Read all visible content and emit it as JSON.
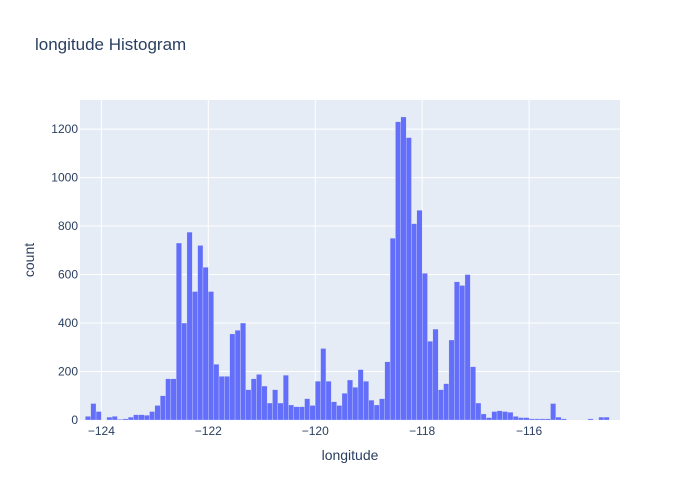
{
  "chart_data": {
    "type": "bar",
    "title": "longitude Histogram",
    "xlabel": "longitude",
    "ylabel": "count",
    "xlim": [
      -124.4,
      -114.3
    ],
    "ylim": [
      0,
      1320
    ],
    "xticks": [
      -124,
      -122,
      -120,
      -118,
      -116
    ],
    "yticks": [
      0,
      200,
      400,
      600,
      800,
      1000,
      1200
    ],
    "grid": true,
    "bar_color": "#636efa",
    "plot_bg": "#e5ecf6",
    "bin_start": -124.3,
    "bin_width": 0.1,
    "values": [
      15,
      68,
      35,
      0,
      12,
      15,
      3,
      5,
      12,
      22,
      22,
      20,
      35,
      60,
      100,
      170,
      170,
      730,
      400,
      775,
      530,
      720,
      630,
      530,
      230,
      180,
      180,
      355,
      370,
      400,
      125,
      170,
      188,
      140,
      70,
      125,
      70,
      185,
      62,
      55,
      55,
      88,
      60,
      160,
      295,
      160,
      75,
      60,
      110,
      165,
      135,
      208,
      160,
      82,
      62,
      88,
      240,
      750,
      1230,
      1250,
      1165,
      810,
      865,
      605,
      325,
      375,
      125,
      150,
      330,
      570,
      555,
      600,
      220,
      70,
      25,
      10,
      35,
      38,
      35,
      32,
      15,
      10,
      10,
      5,
      5,
      5,
      5,
      68,
      12,
      5,
      0,
      0,
      0,
      0,
      5,
      0,
      12,
      12
    ]
  }
}
